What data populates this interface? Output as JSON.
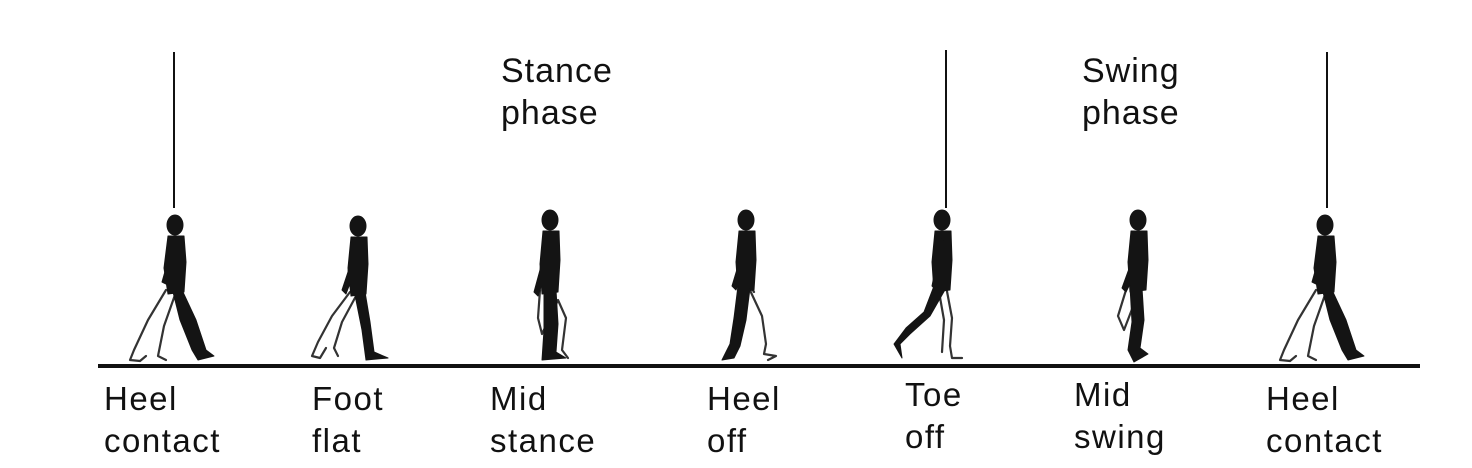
{
  "phases": [
    {
      "line1": "Stance",
      "line2": "phase"
    },
    {
      "line1": "Swing",
      "line2": "phase"
    }
  ],
  "events": [
    {
      "line1": "Heel",
      "line2": "contact"
    },
    {
      "line1": "Foot",
      "line2": "flat"
    },
    {
      "line1": "Mid",
      "line2": "stance"
    },
    {
      "line1": "Heel",
      "line2": "off"
    },
    {
      "line1": "Toe",
      "line2": "off"
    },
    {
      "line1": "Mid",
      "line2": "swing"
    },
    {
      "line1": "Heel",
      "line2": "contact"
    }
  ],
  "colors": {
    "ink": "#111111",
    "background": "#ffffff"
  }
}
